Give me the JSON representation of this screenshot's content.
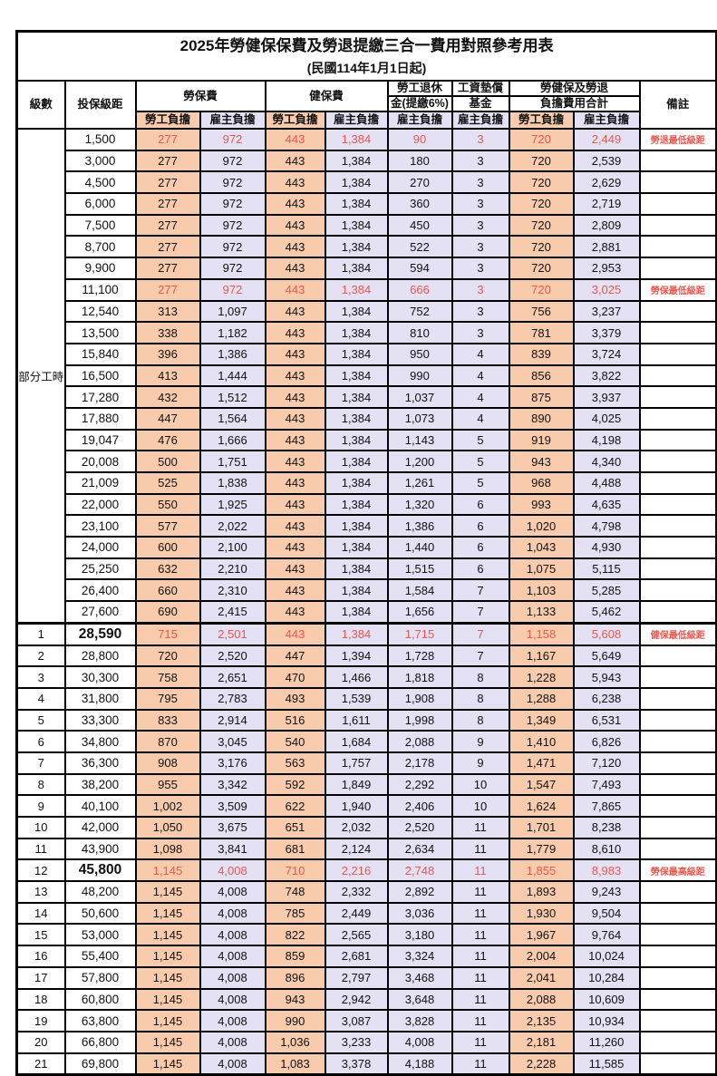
{
  "title": "2025年勞健保保費及勞退提繳三合一費用對照參考用表",
  "subtitle": "(民國114年1月1日起)",
  "header": {
    "level": "級數",
    "salary": "投保級距",
    "labor_insurance": "勞保費",
    "health_insurance": "健保費",
    "pension_line1": "勞工退休",
    "pension_line2": "金(提繳6%)",
    "wage_fund_line1": "工資墊償",
    "wage_fund_line2": "基金",
    "total_line1": "勞健保及勞退",
    "total_line2": "負擔費用合計",
    "note": "備註",
    "employee": "勞工負擔",
    "employer": "雇主負擔"
  },
  "part_time": {
    "label": "部分工時",
    "span": 23
  },
  "colors": {
    "orange_bg": "#F8CBAD",
    "lavender_bg": "#E3E1F3",
    "highlight_red": "#EE564E"
  },
  "rows": [
    {
      "level": "",
      "salary": "1,500",
      "v": [
        "277",
        "972",
        "443",
        "1,384",
        "90",
        "3",
        "720",
        "2,449"
      ],
      "note": "勞退最低級距",
      "hl": true,
      "big": false,
      "thick": false
    },
    {
      "level": "",
      "salary": "3,000",
      "v": [
        "277",
        "972",
        "443",
        "1,384",
        "180",
        "3",
        "720",
        "2,539"
      ],
      "note": "",
      "hl": false,
      "big": false,
      "thick": false
    },
    {
      "level": "",
      "salary": "4,500",
      "v": [
        "277",
        "972",
        "443",
        "1,384",
        "270",
        "3",
        "720",
        "2,629"
      ],
      "note": "",
      "hl": false,
      "big": false,
      "thick": false
    },
    {
      "level": "",
      "salary": "6,000",
      "v": [
        "277",
        "972",
        "443",
        "1,384",
        "360",
        "3",
        "720",
        "2,719"
      ],
      "note": "",
      "hl": false,
      "big": false,
      "thick": false
    },
    {
      "level": "",
      "salary": "7,500",
      "v": [
        "277",
        "972",
        "443",
        "1,384",
        "450",
        "3",
        "720",
        "2,809"
      ],
      "note": "",
      "hl": false,
      "big": false,
      "thick": false
    },
    {
      "level": "",
      "salary": "8,700",
      "v": [
        "277",
        "972",
        "443",
        "1,384",
        "522",
        "3",
        "720",
        "2,881"
      ],
      "note": "",
      "hl": false,
      "big": false,
      "thick": false
    },
    {
      "level": "",
      "salary": "9,900",
      "v": [
        "277",
        "972",
        "443",
        "1,384",
        "594",
        "3",
        "720",
        "2,953"
      ],
      "note": "",
      "hl": false,
      "big": false,
      "thick": false
    },
    {
      "level": "",
      "salary": "11,100",
      "v": [
        "277",
        "972",
        "443",
        "1,384",
        "666",
        "3",
        "720",
        "3,025"
      ],
      "note": "勞保最低級距",
      "hl": true,
      "big": false,
      "thick": false
    },
    {
      "level": "",
      "salary": "12,540",
      "v": [
        "313",
        "1,097",
        "443",
        "1,384",
        "752",
        "3",
        "756",
        "3,237"
      ],
      "note": "",
      "hl": false,
      "big": false,
      "thick": false
    },
    {
      "level": "",
      "salary": "13,500",
      "v": [
        "338",
        "1,182",
        "443",
        "1,384",
        "810",
        "3",
        "781",
        "3,379"
      ],
      "note": "",
      "hl": false,
      "big": false,
      "thick": false
    },
    {
      "level": "",
      "salary": "15,840",
      "v": [
        "396",
        "1,386",
        "443",
        "1,384",
        "950",
        "4",
        "839",
        "3,724"
      ],
      "note": "",
      "hl": false,
      "big": false,
      "thick": false
    },
    {
      "level": "",
      "salary": "16,500",
      "v": [
        "413",
        "1,444",
        "443",
        "1,384",
        "990",
        "4",
        "856",
        "3,822"
      ],
      "note": "",
      "hl": false,
      "big": false,
      "thick": false
    },
    {
      "level": "",
      "salary": "17,280",
      "v": [
        "432",
        "1,512",
        "443",
        "1,384",
        "1,037",
        "4",
        "875",
        "3,937"
      ],
      "note": "",
      "hl": false,
      "big": false,
      "thick": false
    },
    {
      "level": "",
      "salary": "17,880",
      "v": [
        "447",
        "1,564",
        "443",
        "1,384",
        "1,073",
        "4",
        "890",
        "4,025"
      ],
      "note": "",
      "hl": false,
      "big": false,
      "thick": false
    },
    {
      "level": "",
      "salary": "19,047",
      "v": [
        "476",
        "1,666",
        "443",
        "1,384",
        "1,143",
        "5",
        "919",
        "4,198"
      ],
      "note": "",
      "hl": false,
      "big": false,
      "thick": false
    },
    {
      "level": "",
      "salary": "20,008",
      "v": [
        "500",
        "1,751",
        "443",
        "1,384",
        "1,200",
        "5",
        "943",
        "4,340"
      ],
      "note": "",
      "hl": false,
      "big": false,
      "thick": false
    },
    {
      "level": "",
      "salary": "21,009",
      "v": [
        "525",
        "1,838",
        "443",
        "1,384",
        "1,261",
        "5",
        "968",
        "4,488"
      ],
      "note": "",
      "hl": false,
      "big": false,
      "thick": false
    },
    {
      "level": "",
      "salary": "22,000",
      "v": [
        "550",
        "1,925",
        "443",
        "1,384",
        "1,320",
        "6",
        "993",
        "4,635"
      ],
      "note": "",
      "hl": false,
      "big": false,
      "thick": false
    },
    {
      "level": "",
      "salary": "23,100",
      "v": [
        "577",
        "2,022",
        "443",
        "1,384",
        "1,386",
        "6",
        "1,020",
        "4,798"
      ],
      "note": "",
      "hl": false,
      "big": false,
      "thick": false
    },
    {
      "level": "",
      "salary": "24,000",
      "v": [
        "600",
        "2,100",
        "443",
        "1,384",
        "1,440",
        "6",
        "1,043",
        "4,930"
      ],
      "note": "",
      "hl": false,
      "big": false,
      "thick": false
    },
    {
      "level": "",
      "salary": "25,250",
      "v": [
        "632",
        "2,210",
        "443",
        "1,384",
        "1,515",
        "6",
        "1,075",
        "5,115"
      ],
      "note": "",
      "hl": false,
      "big": false,
      "thick": false
    },
    {
      "level": "",
      "salary": "26,400",
      "v": [
        "660",
        "2,310",
        "443",
        "1,384",
        "1,584",
        "7",
        "1,103",
        "5,285"
      ],
      "note": "",
      "hl": false,
      "big": false,
      "thick": false
    },
    {
      "level": "",
      "salary": "27,600",
      "v": [
        "690",
        "2,415",
        "443",
        "1,384",
        "1,656",
        "7",
        "1,133",
        "5,462"
      ],
      "note": "",
      "hl": false,
      "big": false,
      "thick": false
    },
    {
      "level": "1",
      "salary": "28,590",
      "v": [
        "715",
        "2,501",
        "443",
        "1,384",
        "1,715",
        "7",
        "1,158",
        "5,608"
      ],
      "note": "健保最低級距",
      "hl": true,
      "big": true,
      "thick": true
    },
    {
      "level": "2",
      "salary": "28,800",
      "v": [
        "720",
        "2,520",
        "447",
        "1,394",
        "1,728",
        "7",
        "1,167",
        "5,649"
      ],
      "note": "",
      "hl": false,
      "big": false,
      "thick": false
    },
    {
      "level": "3",
      "salary": "30,300",
      "v": [
        "758",
        "2,651",
        "470",
        "1,466",
        "1,818",
        "8",
        "1,228",
        "5,943"
      ],
      "note": "",
      "hl": false,
      "big": false,
      "thick": false
    },
    {
      "level": "4",
      "salary": "31,800",
      "v": [
        "795",
        "2,783",
        "493",
        "1,539",
        "1,908",
        "8",
        "1,288",
        "6,238"
      ],
      "note": "",
      "hl": false,
      "big": false,
      "thick": false
    },
    {
      "level": "5",
      "salary": "33,300",
      "v": [
        "833",
        "2,914",
        "516",
        "1,611",
        "1,998",
        "8",
        "1,349",
        "6,531"
      ],
      "note": "",
      "hl": false,
      "big": false,
      "thick": false
    },
    {
      "level": "6",
      "salary": "34,800",
      "v": [
        "870",
        "3,045",
        "540",
        "1,684",
        "2,088",
        "9",
        "1,410",
        "6,826"
      ],
      "note": "",
      "hl": false,
      "big": false,
      "thick": false
    },
    {
      "level": "7",
      "salary": "36,300",
      "v": [
        "908",
        "3,176",
        "563",
        "1,757",
        "2,178",
        "9",
        "1,471",
        "7,120"
      ],
      "note": "",
      "hl": false,
      "big": false,
      "thick": false
    },
    {
      "level": "8",
      "salary": "38,200",
      "v": [
        "955",
        "3,342",
        "592",
        "1,849",
        "2,292",
        "10",
        "1,547",
        "7,493"
      ],
      "note": "",
      "hl": false,
      "big": false,
      "thick": false
    },
    {
      "level": "9",
      "salary": "40,100",
      "v": [
        "1,002",
        "3,509",
        "622",
        "1,940",
        "2,406",
        "10",
        "1,624",
        "7,865"
      ],
      "note": "",
      "hl": false,
      "big": false,
      "thick": false
    },
    {
      "level": "10",
      "salary": "42,000",
      "v": [
        "1,050",
        "3,675",
        "651",
        "2,032",
        "2,520",
        "11",
        "1,701",
        "8,238"
      ],
      "note": "",
      "hl": false,
      "big": false,
      "thick": false
    },
    {
      "level": "11",
      "salary": "43,900",
      "v": [
        "1,098",
        "3,841",
        "681",
        "2,124",
        "2,634",
        "11",
        "1,779",
        "8,610"
      ],
      "note": "",
      "hl": false,
      "big": false,
      "thick": false
    },
    {
      "level": "12",
      "salary": "45,800",
      "v": [
        "1,145",
        "4,008",
        "710",
        "2,216",
        "2,748",
        "11",
        "1,855",
        "8,983"
      ],
      "note": "勞保最高級距",
      "hl": true,
      "big": true,
      "thick": false
    },
    {
      "level": "13",
      "salary": "48,200",
      "v": [
        "1,145",
        "4,008",
        "748",
        "2,332",
        "2,892",
        "11",
        "1,893",
        "9,243"
      ],
      "note": "",
      "hl": false,
      "big": false,
      "thick": false
    },
    {
      "level": "14",
      "salary": "50,600",
      "v": [
        "1,145",
        "4,008",
        "785",
        "2,449",
        "3,036",
        "11",
        "1,930",
        "9,504"
      ],
      "note": "",
      "hl": false,
      "big": false,
      "thick": false
    },
    {
      "level": "15",
      "salary": "53,000",
      "v": [
        "1,145",
        "4,008",
        "822",
        "2,565",
        "3,180",
        "11",
        "1,967",
        "9,764"
      ],
      "note": "",
      "hl": false,
      "big": false,
      "thick": false
    },
    {
      "level": "16",
      "salary": "55,400",
      "v": [
        "1,145",
        "4,008",
        "859",
        "2,681",
        "3,324",
        "11",
        "2,004",
        "10,024"
      ],
      "note": "",
      "hl": false,
      "big": false,
      "thick": false
    },
    {
      "level": "17",
      "salary": "57,800",
      "v": [
        "1,145",
        "4,008",
        "896",
        "2,797",
        "3,468",
        "11",
        "2,041",
        "10,284"
      ],
      "note": "",
      "hl": false,
      "big": false,
      "thick": false
    },
    {
      "level": "18",
      "salary": "60,800",
      "v": [
        "1,145",
        "4,008",
        "943",
        "2,942",
        "3,648",
        "11",
        "2,088",
        "10,609"
      ],
      "note": "",
      "hl": false,
      "big": false,
      "thick": false
    },
    {
      "level": "19",
      "salary": "63,800",
      "v": [
        "1,145",
        "4,008",
        "990",
        "3,087",
        "3,828",
        "11",
        "2,135",
        "10,934"
      ],
      "note": "",
      "hl": false,
      "big": false,
      "thick": false
    },
    {
      "level": "20",
      "salary": "66,800",
      "v": [
        "1,145",
        "4,008",
        "1,036",
        "3,233",
        "4,008",
        "11",
        "2,181",
        "11,260"
      ],
      "note": "",
      "hl": false,
      "big": false,
      "thick": false
    },
    {
      "level": "21",
      "salary": "69,800",
      "v": [
        "1,145",
        "4,008",
        "1,083",
        "3,378",
        "4,188",
        "11",
        "2,228",
        "11,585"
      ],
      "note": "",
      "hl": false,
      "big": false,
      "thick": false
    }
  ]
}
